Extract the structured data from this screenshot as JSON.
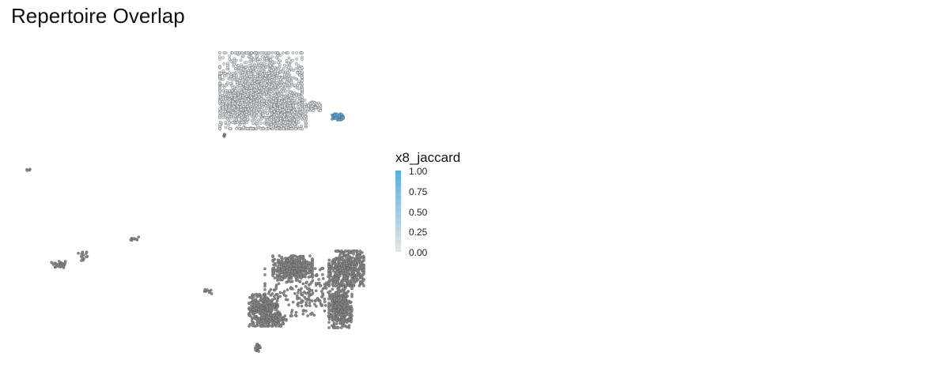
{
  "title": "Repertoire Overlap",
  "chart_data": {
    "type": "scatter",
    "title": "Repertoire Overlap",
    "xlabel": "",
    "ylabel": "",
    "axes_visible": false,
    "grid": false,
    "color_variable": "x8_jaccard",
    "color_scale": {
      "low": "#e6e6e6",
      "high": "#5aaee0",
      "range": [
        0,
        1
      ],
      "breaks": [
        "0.00",
        "0.25",
        "0.50",
        "0.75",
        "1.00"
      ],
      "na_color": "#8a8a8a"
    },
    "legend_position": "right",
    "series": [
      {
        "name": "",
        "x": [
          -4,
          4
        ],
        "y": [
          8,
          14
        ],
        "x8_jaccard": 0.08,
        "count": 2600,
        "spread": [
          1.2,
          1.0
        ]
      },
      {
        "name": "",
        "x": [
          5.2,
          5.6
        ],
        "y": [
          8,
          9
        ],
        "x8_jaccard": 1.0,
        "count": 60,
        "spread": [
          0.25,
          0.2
        ]
      },
      {
        "name": "",
        "x": [
          -1,
          8
        ],
        "y": [
          -14,
          -7
        ],
        "x8_jaccard": null,
        "count": 2400,
        "spread": [
          1,
          1
        ]
      },
      {
        "name": "",
        "x": [
          -22,
          -12
        ],
        "y": [
          -8,
          3
        ],
        "x8_jaccard": null,
        "count": 60,
        "spread": [
          0.3,
          0.3
        ]
      }
    ]
  },
  "legend": {
    "title": "x8_jaccard",
    "ticks": [
      "1.00",
      "0.75",
      "0.50",
      "0.25",
      "0.00"
    ],
    "tick_values": [
      1.0,
      0.75,
      0.5,
      0.25,
      0.0
    ]
  }
}
